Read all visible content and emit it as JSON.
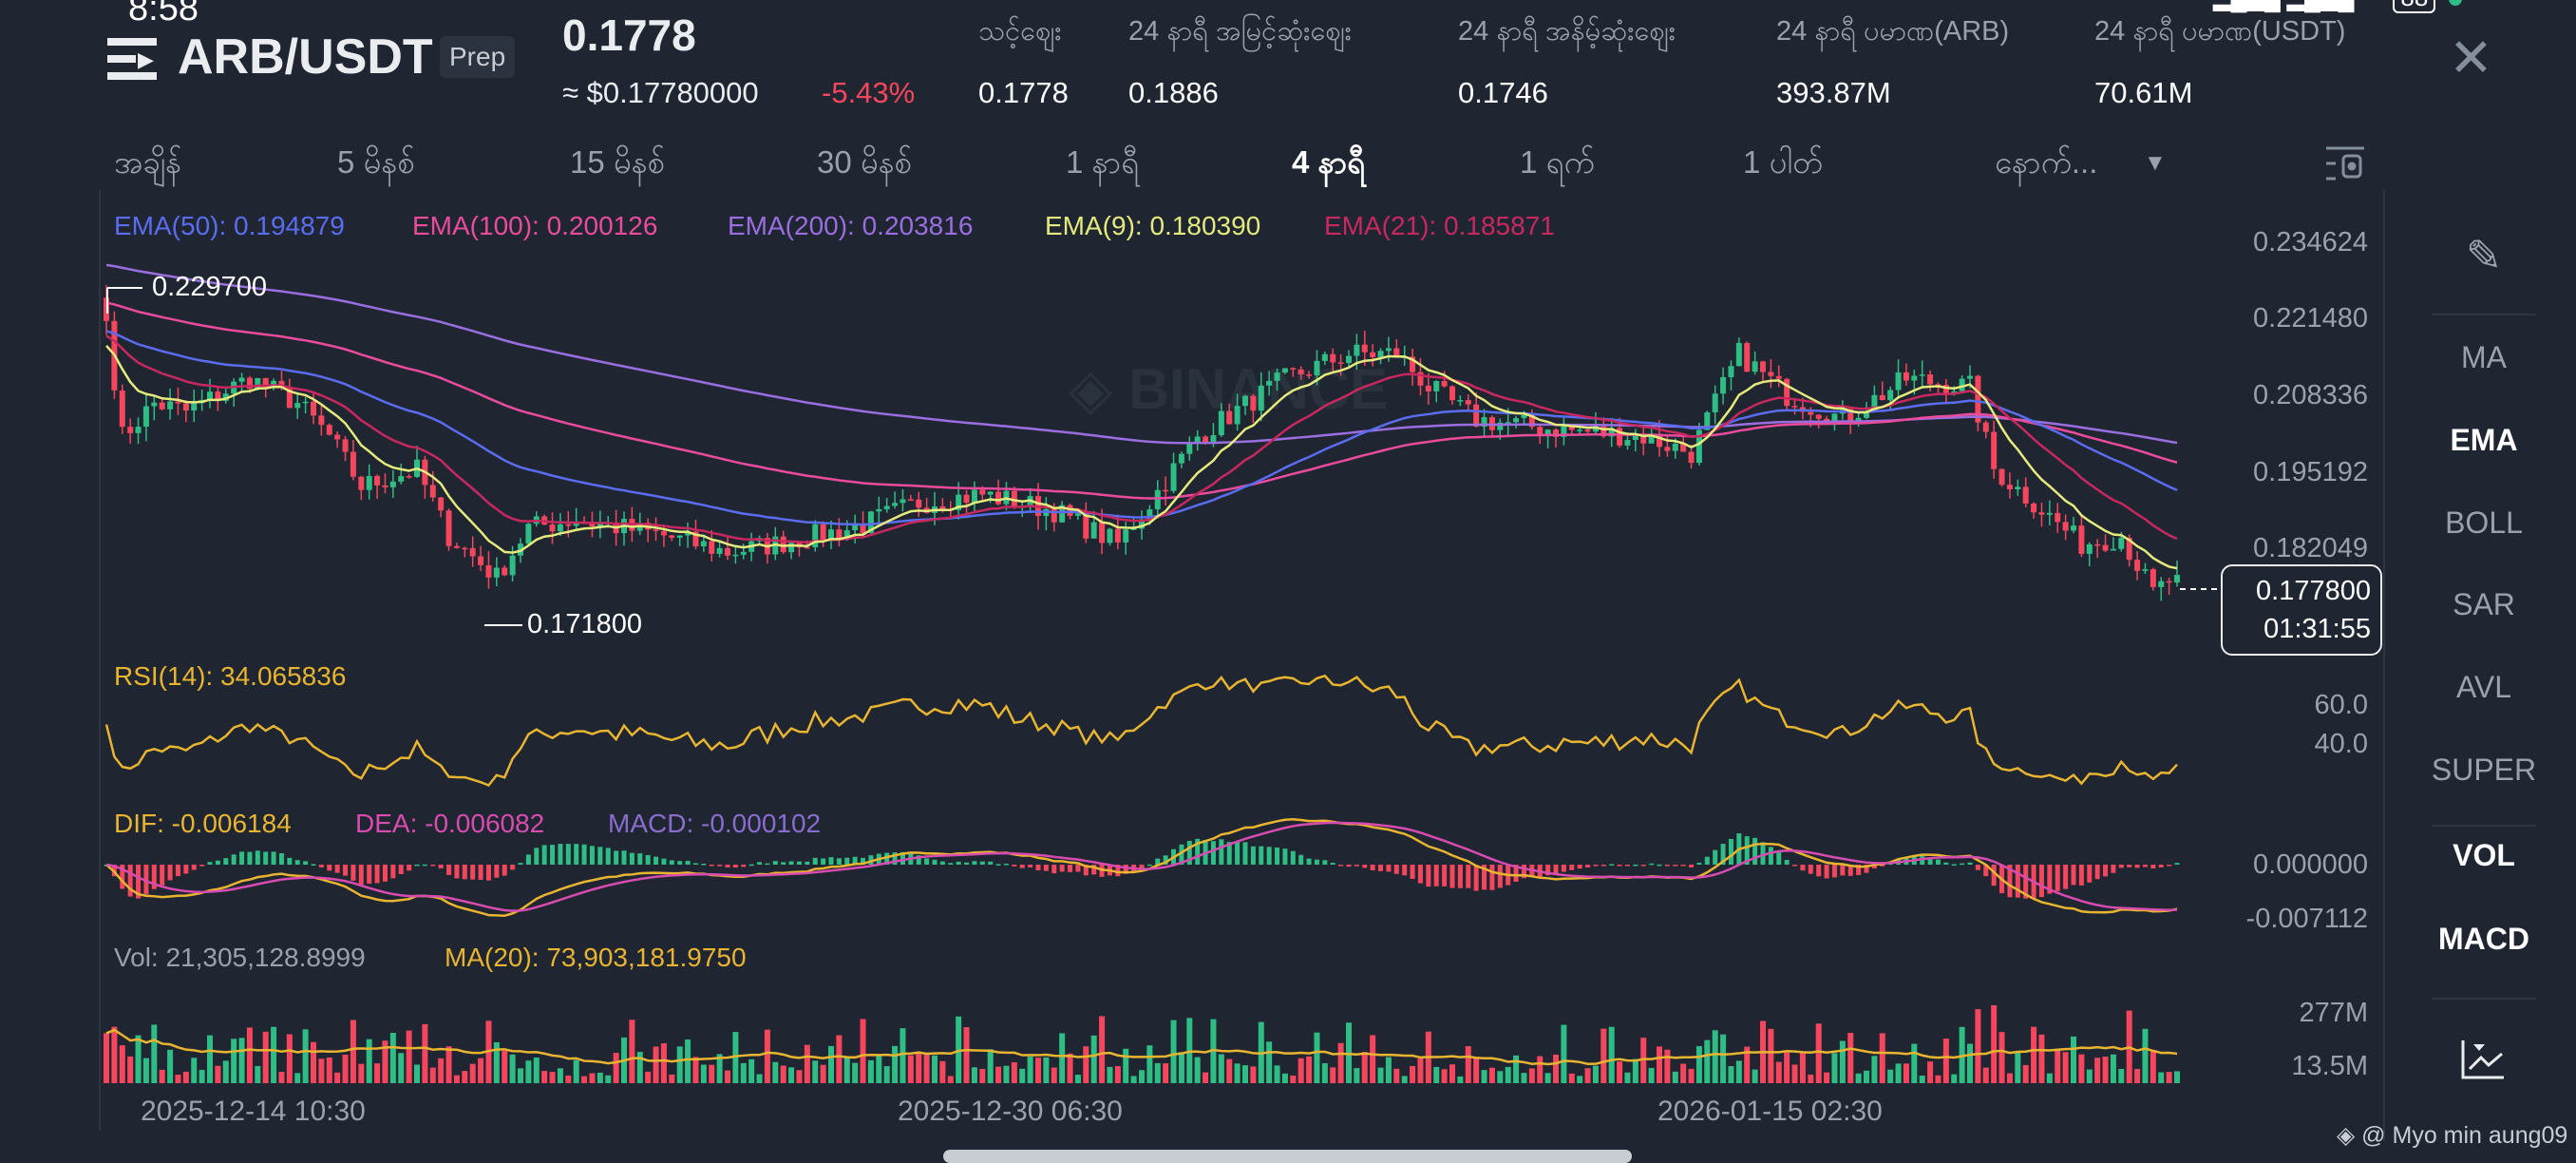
{
  "status": {
    "time": "8:58",
    "battery": "88"
  },
  "header": {
    "pair": "ARB/USDT",
    "badge": "Prep",
    "last_price": "0.1778",
    "fiat_price": "≈ $0.17780000",
    "change": "-5.43%",
    "stats": [
      {
        "label": "သင့်ဈေး",
        "value": "0.1778"
      },
      {
        "label": "24 နာရီ အမြင့်ဆုံးဈေး",
        "value": "0.1886"
      },
      {
        "label": "24 နာရီ အနိမ့်ဆုံးဈေး",
        "value": "0.1746"
      },
      {
        "label": "24 နာရီ ပမာဏ(ARB)",
        "value": "393.87M"
      },
      {
        "label": "24 နာရီ ပမာဏ(USDT)",
        "value": "70.61M"
      }
    ],
    "close_icon": "close-icon",
    "menu_icon": "menu-icon"
  },
  "timeframes": {
    "items": [
      "အချိန်",
      "5 မိနစ်",
      "15 မိနစ်",
      "30 မိနစ်",
      "1 နာရီ",
      "4 နာရီ",
      "1 ရက်",
      "1 ပါတ်",
      "နောက်..."
    ],
    "active": "4 နာရီ"
  },
  "legend": {
    "ema50": "EMA(50): 0.194879",
    "ema100": "EMA(100): 0.200126",
    "ema200": "EMA(200): 0.203816",
    "ema9": "EMA(9): 0.180390",
    "ema21": "EMA(21): 0.185871",
    "rsi": "RSI(14): 34.065836",
    "dif": "DIF: -0.006184",
    "dea": "DEA: -0.006082",
    "macd": "MACD: -0.000102",
    "vol": "Vol: 21,305,128.8999",
    "vol_ma": "MA(20): 73,903,181.9750"
  },
  "colors": {
    "up": "#2ebd85",
    "down": "#f6465d",
    "ema50": "#5a6cf0",
    "ema100": "#ea4b9c",
    "ema200": "#9a6ee0",
    "ema9": "#e4ea7c",
    "ema21": "#c8285f",
    "rsi": "#e9b430",
    "dif": "#e9b430",
    "dea": "#d84bb0",
    "macd": "#8a6ccf"
  },
  "chart_data": {
    "type": "candlestick",
    "price_ticks": [
      "0.234624",
      "0.221480",
      "0.208336",
      "0.195192",
      "0.182049"
    ],
    "rsi_ticks": [
      "60.0",
      "40.0"
    ],
    "macd_ticks": [
      "0.000000",
      "-0.007112"
    ],
    "vol_ticks": [
      "277M",
      "13.5M"
    ],
    "x_ticks": [
      "2025-12-14 10:30",
      "2025-12-30 06:30",
      "2026-01-15 02:30"
    ],
    "high_marker": "0.229700",
    "low_marker": "0.171800",
    "current_price": "0.177800",
    "countdown": "01:31:55",
    "close_keypoints": [
      [
        0,
        0.2213
      ],
      [
        2,
        0.2015
      ],
      [
        6,
        0.2072
      ],
      [
        10,
        0.2058
      ],
      [
        18,
        0.2115
      ],
      [
        24,
        0.2072
      ],
      [
        28,
        0.2015
      ],
      [
        32,
        0.193
      ],
      [
        39,
        0.1958
      ],
      [
        43,
        0.1845
      ],
      [
        49,
        0.1774
      ],
      [
        53,
        0.1859
      ],
      [
        59,
        0.1873
      ],
      [
        70,
        0.1845
      ],
      [
        78,
        0.1817
      ],
      [
        84,
        0.1831
      ],
      [
        94,
        0.1859
      ],
      [
        102,
        0.1902
      ],
      [
        110,
        0.1916
      ],
      [
        119,
        0.1888
      ],
      [
        127,
        0.1831
      ],
      [
        131,
        0.1902
      ],
      [
        137,
        0.2015
      ],
      [
        148,
        0.2114
      ],
      [
        156,
        0.2157
      ],
      [
        162,
        0.2157
      ],
      [
        166,
        0.21
      ],
      [
        172,
        0.2044
      ],
      [
        181,
        0.2029
      ],
      [
        193,
        0.2015
      ],
      [
        199,
        0.1987
      ],
      [
        205,
        0.2157
      ],
      [
        211,
        0.2086
      ],
      [
        218,
        0.2044
      ],
      [
        226,
        0.2114
      ],
      [
        234,
        0.21
      ],
      [
        237,
        0.1959
      ],
      [
        242,
        0.1902
      ],
      [
        248,
        0.1831
      ],
      [
        253,
        0.1845
      ],
      [
        257,
        0.1746
      ],
      [
        260,
        0.1778
      ]
    ]
  },
  "watermark": "BINANCE",
  "credit": "@ Myo min aung09",
  "sidebar": {
    "items": [
      "MA",
      "EMA",
      "BOLL",
      "SAR",
      "AVL",
      "SUPER",
      "VOL",
      "MACD"
    ],
    "active": [
      "EMA",
      "VOL",
      "MACD"
    ]
  }
}
